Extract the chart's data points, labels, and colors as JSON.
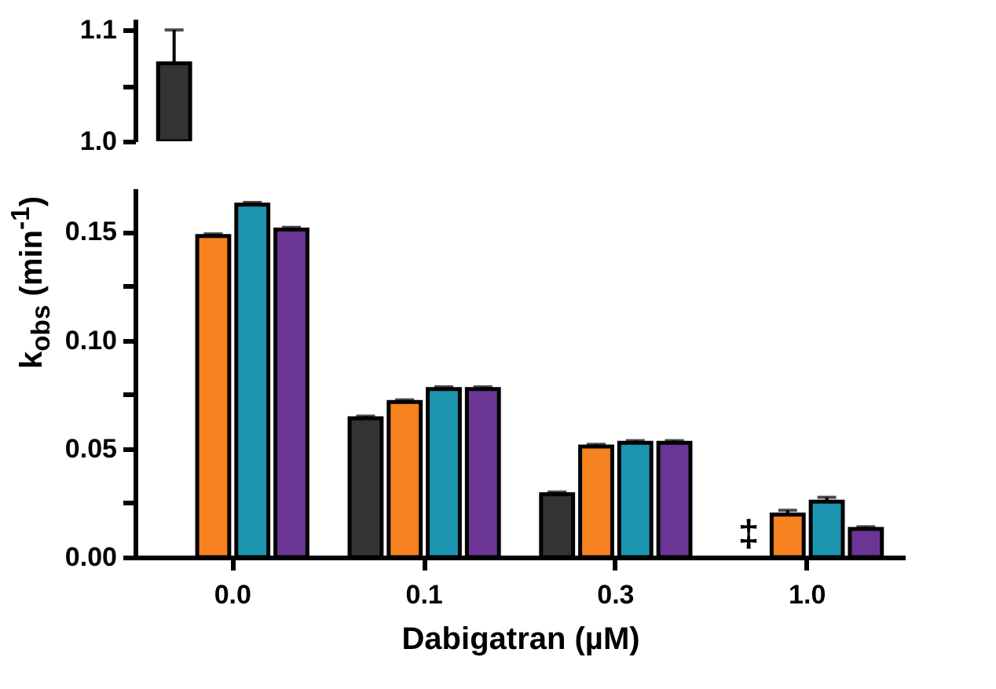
{
  "chart_data": [
    {
      "type": "bar",
      "categories": [
        "0.0",
        "0.1",
        "0.3",
        "1.0"
      ],
      "ylabel": "k$_{obs}$ (min$^{-1}$)",
      "ylim": [
        1.0,
        1.11
      ],
      "yticks": [
        {
          "value": 1.0,
          "label": "1.0"
        },
        {
          "value": 1.05,
          "label": null
        },
        1.1
      ],
      "tick_labels": "y",
      "series": [
        {
          "color": "#333333",
          "values": [
            1.07,
            null,
            null,
            null
          ],
          "errors": [
            0.03,
            null,
            null,
            null
          ]
        },
        {
          "color": "#f5821f",
          "values": [
            null,
            null,
            null,
            null
          ]
        },
        {
          "color": "#1d95b0",
          "values": [
            null,
            null,
            null,
            null
          ]
        },
        {
          "color": "#6b3595",
          "values": [
            null,
            null,
            null,
            null
          ]
        }
      ]
    },
    {
      "type": "bar",
      "categories": [
        "0.0",
        "0.1",
        "0.3",
        "1.0"
      ],
      "xlabel": "Dabigatran (µM)",
      "ylim": [
        0,
        0.17
      ],
      "yticks": [
        {
          "value": 0,
          "label": "0.00"
        },
        {
          "value": 0.025,
          "label": null
        },
        {
          "value": 0.05,
          "label": "0.05"
        },
        {
          "value": 0.075,
          "label": null
        },
        {
          "value": 0.1,
          "label": "0.10"
        },
        {
          "value": 0.125,
          "label": null
        },
        {
          "value": 0.15,
          "label": "0.15"
        }
      ],
      "annotations": [
        {
          "text": "‡",
          "x": "1.0",
          "y": 0.01
        }
      ],
      "series": [
        {
          "color": "#333333",
          "values": [
            null,
            0.064,
            0.029,
            null
          ],
          "errors": [
            null,
            0.001,
            0.001,
            null
          ]
        },
        {
          "color": "#f5821f",
          "values": [
            0.148,
            0.0715,
            0.051,
            0.0196
          ],
          "errors": [
            0.001,
            0.001,
            0.001,
            0.002
          ]
        },
        {
          "color": "#1d95b0",
          "values": [
            0.1625,
            0.0775,
            0.0527,
            0.0256
          ],
          "errors": [
            0.001,
            0.001,
            0.001,
            0.002
          ]
        },
        {
          "color": "#6b3595",
          "values": [
            0.151,
            0.0775,
            0.0527,
            0.013
          ],
          "errors": [
            0.001,
            0.001,
            0.001,
            0.001
          ]
        }
      ]
    }
  ]
}
